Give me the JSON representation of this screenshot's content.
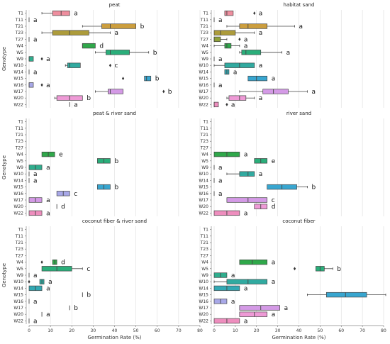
{
  "chart_data": [
    {
      "type": "boxplot",
      "title": "peat",
      "ylabel": "Genotype",
      "xlabel": "",
      "xlim": [
        0,
        80
      ],
      "x_ticks": [],
      "grid": true,
      "categories": [
        "T1",
        "T11",
        "T21",
        "T23",
        "T27",
        "W4",
        "W5",
        "W9",
        "W10",
        "W14",
        "W15",
        "W16",
        "W17",
        "W20",
        "W22"
      ],
      "boxes": [
        {
          "genotype": "T1",
          "min": 6,
          "q1": 11,
          "median": 15,
          "q3": 19,
          "max": 19,
          "outliers": [],
          "letter": "a",
          "color": "#ee8e9e"
        },
        {
          "genotype": "T11",
          "min": 0,
          "q1": 0,
          "median": 0,
          "q3": 0,
          "max": 0,
          "outliers": [],
          "letter": "a",
          "color": "#ee8e9e"
        },
        {
          "genotype": "T21",
          "min": 25,
          "q1": 34,
          "median": 38,
          "q3": 50,
          "max": 50,
          "outliers": [],
          "letter": "b",
          "color": "#cc9e3e"
        },
        {
          "genotype": "T23",
          "min": 6,
          "q1": 11,
          "median": 19,
          "q3": 28,
          "max": 38,
          "outliers": [],
          "letter": "a",
          "color": "#ad9c3b"
        },
        {
          "genotype": "T27",
          "min": 0,
          "q1": 0,
          "median": 0,
          "q3": 0,
          "max": 0,
          "outliers": [],
          "letter": "a",
          "color": "#8fa13a"
        },
        {
          "genotype": "W4",
          "min": 25,
          "q1": 25,
          "median": 25,
          "q3": 31,
          "max": 31,
          "outliers": [],
          "letter": "d",
          "color": "#2fa84a"
        },
        {
          "genotype": "W5",
          "min": 31,
          "q1": 36,
          "median": 38,
          "q3": 47,
          "max": 56,
          "outliers": [],
          "letter": "b",
          "color": "#2aae7a"
        },
        {
          "genotype": "W9",
          "min": 0,
          "q1": 0,
          "median": 0,
          "q3": 2,
          "max": 2,
          "outliers": [
            6
          ],
          "letter": "a",
          "color": "#30ae8e"
        },
        {
          "genotype": "W10",
          "min": 17,
          "q1": 18,
          "median": 19,
          "q3": 24,
          "max": 24,
          "outliers": [
            38
          ],
          "letter": "c",
          "color": "#31aaa0"
        },
        {
          "genotype": "W14",
          "min": 0,
          "q1": 0,
          "median": 0,
          "q3": 0,
          "max": 0,
          "outliers": [],
          "letter": "a",
          "color": "#33a9b4"
        },
        {
          "genotype": "W15",
          "min": 54,
          "q1": 54,
          "median": 55,
          "q3": 57,
          "max": 57,
          "outliers": [
            44
          ],
          "letter": "b",
          "color": "#38a6d0"
        },
        {
          "genotype": "W16",
          "min": 0,
          "q1": 0,
          "median": 0,
          "q3": 2,
          "max": 2,
          "outliers": [
            6
          ],
          "letter": "a",
          "color": "#a8a8e8"
        },
        {
          "genotype": "W17",
          "min": 31,
          "q1": 37,
          "median": 38,
          "q3": 44,
          "max": 44,
          "outliers": [
            63
          ],
          "letter": "b",
          "color": "#d49ae6"
        },
        {
          "genotype": "W20",
          "min": 12,
          "q1": 13,
          "median": 19,
          "q3": 25,
          "max": 25,
          "outliers": [],
          "letter": "b",
          "color": "#ee9ad6"
        },
        {
          "genotype": "W22",
          "min": 19,
          "q1": 19,
          "median": 19,
          "q3": 19,
          "max": 19,
          "outliers": [],
          "letter": "a",
          "color": "#ee8ebe"
        }
      ]
    },
    {
      "type": "boxplot",
      "title": "habitat sand",
      "ylabel": "",
      "xlabel": "",
      "xlim": [
        0,
        80
      ],
      "x_ticks": [],
      "grid": true,
      "categories": [
        "T1",
        "T11",
        "T21",
        "T23",
        "T27",
        "W4",
        "W5",
        "W9",
        "W10",
        "W14",
        "W15",
        "W16",
        "W17",
        "W20",
        "W22"
      ],
      "boxes": [
        {
          "genotype": "T1",
          "min": 5,
          "q1": 5,
          "median": 6,
          "q3": 9,
          "max": 9,
          "outliers": [
            19
          ],
          "letter": "a",
          "color": "#ee8e9e"
        },
        {
          "genotype": "T11",
          "min": 0,
          "q1": 0,
          "median": 0,
          "q3": 0,
          "max": 0,
          "outliers": [],
          "letter": "a",
          "color": "#ee8e9e"
        },
        {
          "genotype": "T21",
          "min": 6,
          "q1": 12,
          "median": 16,
          "q3": 25,
          "max": 38,
          "outliers": [],
          "letter": "a",
          "color": "#cc9e3e"
        },
        {
          "genotype": "T23",
          "min": 0,
          "q1": 0,
          "median": 3,
          "q3": 10,
          "max": 19,
          "outliers": [],
          "letter": "a",
          "color": "#ad9c3b"
        },
        {
          "genotype": "T27",
          "min": 0,
          "q1": 0,
          "median": 0,
          "q3": 3,
          "max": 6,
          "outliers": [
            12
          ],
          "letter": "a",
          "color": "#8fa13a"
        },
        {
          "genotype": "W4",
          "min": 0,
          "q1": 5,
          "median": 6,
          "q3": 8,
          "max": 12,
          "outliers": [],
          "letter": "a",
          "color": "#2fa84a"
        },
        {
          "genotype": "W5",
          "min": 12,
          "q1": 13,
          "median": 15,
          "q3": 22,
          "max": 32,
          "outliers": [],
          "letter": "a",
          "color": "#2aae7a"
        },
        {
          "genotype": "W9",
          "min": 0,
          "q1": 0,
          "median": 0,
          "q3": 0,
          "max": 0,
          "outliers": [],
          "letter": "a",
          "color": "#30ae8e"
        },
        {
          "genotype": "W10",
          "min": 0,
          "q1": 5,
          "median": 12,
          "q3": 19,
          "max": 19,
          "outliers": [],
          "letter": "a",
          "color": "#31aaa0"
        },
        {
          "genotype": "W14",
          "min": 5,
          "q1": 5,
          "median": 6,
          "q3": 7,
          "max": 7,
          "outliers": [],
          "letter": "a",
          "color": "#33a9b4"
        },
        {
          "genotype": "W15",
          "min": 16,
          "q1": 16,
          "median": 20,
          "q3": 25,
          "max": 25,
          "outliers": [],
          "letter": "a",
          "color": "#38a6d0"
        },
        {
          "genotype": "W16",
          "min": 0,
          "q1": 0,
          "median": 0,
          "q3": 0,
          "max": 0,
          "outliers": [],
          "letter": "a",
          "color": "#a8a8e8"
        },
        {
          "genotype": "W17",
          "min": 12,
          "q1": 23,
          "median": 28,
          "q3": 35,
          "max": 44,
          "outliers": [],
          "letter": "a",
          "color": "#d49ae6"
        },
        {
          "genotype": "W20",
          "min": 6,
          "q1": 7,
          "median": 12,
          "q3": 15,
          "max": 19,
          "outliers": [],
          "letter": "a",
          "color": "#ee9ad6"
        },
        {
          "genotype": "W22",
          "min": 0,
          "q1": 0,
          "median": 0,
          "q3": 2,
          "max": 2,
          "outliers": [
            6
          ],
          "letter": "a",
          "color": "#ee8ebe"
        }
      ]
    },
    {
      "type": "boxplot",
      "title": "peat & river sand",
      "ylabel": "Genotype",
      "xlabel": "",
      "xlim": [
        0,
        80
      ],
      "x_ticks": [],
      "grid": true,
      "categories": [
        "T1",
        "T11",
        "T21",
        "T23",
        "T27",
        "W4",
        "W5",
        "W9",
        "W10",
        "W14",
        "W15",
        "W16",
        "W17",
        "W20",
        "W22"
      ],
      "boxes": [
        {
          "genotype": "W4",
          "min": 6,
          "q1": 6,
          "median": 9,
          "q3": 12,
          "max": 12,
          "outliers": [],
          "letter": "e",
          "color": "#2fa84a"
        },
        {
          "genotype": "W5",
          "min": 32,
          "q1": 32,
          "median": 35,
          "q3": 38,
          "max": 38,
          "outliers": [],
          "letter": "b",
          "color": "#2aae7a"
        },
        {
          "genotype": "W9",
          "min": 0,
          "q1": 0,
          "median": 3,
          "q3": 6,
          "max": 6,
          "outliers": [],
          "letter": "a",
          "color": "#30ae8e"
        },
        {
          "genotype": "W10",
          "min": 0,
          "q1": 0,
          "median": 0,
          "q3": 0,
          "max": 0,
          "outliers": [],
          "letter": "a",
          "color": "#31aaa0"
        },
        {
          "genotype": "W14",
          "min": 0,
          "q1": 0,
          "median": 0,
          "q3": 0,
          "max": 0,
          "outliers": [],
          "letter": "a",
          "color": "#33a9b4"
        },
        {
          "genotype": "W15",
          "min": 32,
          "q1": 32,
          "median": 35,
          "q3": 38,
          "max": 38,
          "outliers": [],
          "letter": "b",
          "color": "#38a6d0"
        },
        {
          "genotype": "W16",
          "min": 13,
          "q1": 13,
          "median": 16,
          "q3": 19,
          "max": 19,
          "outliers": [],
          "letter": "c",
          "color": "#a8a8e8"
        },
        {
          "genotype": "W17",
          "min": 0,
          "q1": 0,
          "median": 3,
          "q3": 6,
          "max": 6,
          "outliers": [],
          "letter": "a",
          "color": "#d49ae6"
        },
        {
          "genotype": "W20",
          "min": 13,
          "q1": 13,
          "median": 13,
          "q3": 13,
          "max": 13,
          "outliers": [],
          "letter": "d",
          "color": "#ee9ad6"
        },
        {
          "genotype": "W22",
          "min": 0,
          "q1": 0,
          "median": 3,
          "q3": 6,
          "max": 6,
          "outliers": [],
          "letter": "a",
          "color": "#ee8ebe"
        }
      ]
    },
    {
      "type": "boxplot",
      "title": "river sand",
      "ylabel": "",
      "xlabel": "",
      "xlim": [
        0,
        80
      ],
      "x_ticks": [],
      "grid": true,
      "categories": [
        "T1",
        "T11",
        "T21",
        "T23",
        "T27",
        "W4",
        "W5",
        "W9",
        "W10",
        "W14",
        "W15",
        "W16",
        "W17",
        "W20",
        "W22"
      ],
      "boxes": [
        {
          "genotype": "W4",
          "min": 0,
          "q1": 0,
          "median": 6,
          "q3": 12,
          "max": 12,
          "outliers": [],
          "letter": "a",
          "color": "#2fa84a"
        },
        {
          "genotype": "W5",
          "min": 19,
          "q1": 19,
          "median": 22,
          "q3": 25,
          "max": 25,
          "outliers": [],
          "letter": "e",
          "color": "#2aae7a"
        },
        {
          "genotype": "W9",
          "min": 0,
          "q1": 0,
          "median": 0,
          "q3": 0,
          "max": 0,
          "outliers": [],
          "letter": "a",
          "color": "#30ae8e"
        },
        {
          "genotype": "W10",
          "min": 6,
          "q1": 12,
          "median": 16,
          "q3": 19,
          "max": 19,
          "outliers": [],
          "letter": "a",
          "color": "#31aaa0"
        },
        {
          "genotype": "W14",
          "min": 0,
          "q1": 0,
          "median": 0,
          "q3": 0,
          "max": 0,
          "outliers": [],
          "letter": "a",
          "color": "#33a9b4"
        },
        {
          "genotype": "W15",
          "min": 25,
          "q1": 25,
          "median": 32,
          "q3": 39,
          "max": 44,
          "outliers": [],
          "letter": "b",
          "color": "#38a6d0"
        },
        {
          "genotype": "W16",
          "min": 0,
          "q1": 0,
          "median": 0,
          "q3": 0,
          "max": 0,
          "outliers": [],
          "letter": "a",
          "color": "#a8a8e8"
        },
        {
          "genotype": "W17",
          "min": 6,
          "q1": 6,
          "median": 16,
          "q3": 25,
          "max": 25,
          "outliers": [],
          "letter": "c",
          "color": "#d49ae6"
        },
        {
          "genotype": "W20",
          "min": 19,
          "q1": 19,
          "median": 22,
          "q3": 25,
          "max": 25,
          "outliers": [],
          "letter": "d",
          "color": "#ee9ad6"
        },
        {
          "genotype": "W22",
          "min": 0,
          "q1": 0,
          "median": 6,
          "q3": 12,
          "max": 12,
          "outliers": [],
          "letter": "a",
          "color": "#ee8ebe"
        }
      ]
    },
    {
      "type": "boxplot",
      "title": "coconut fiber & river sand",
      "ylabel": "Genotype",
      "xlabel": "Germination Rate (%)",
      "xlim": [
        0,
        80
      ],
      "x_ticks": [
        0,
        10,
        20,
        30,
        40,
        50,
        60,
        70,
        80
      ],
      "grid": true,
      "categories": [
        "T1",
        "T11",
        "T21",
        "T23",
        "T27",
        "W4",
        "W5",
        "W9",
        "W10",
        "W14",
        "W15",
        "W16",
        "W17",
        "W20",
        "W22"
      ],
      "boxes": [
        {
          "genotype": "W4",
          "min": 11,
          "q1": 11,
          "median": 12,
          "q3": 13,
          "max": 13,
          "outliers": [
            6
          ],
          "letter": "d",
          "color": "#2fa84a"
        },
        {
          "genotype": "W5",
          "min": 6,
          "q1": 6,
          "median": 13,
          "q3": 20,
          "max": 25,
          "outliers": [],
          "letter": "c",
          "color": "#2aae7a"
        },
        {
          "genotype": "W9",
          "min": 0,
          "q1": 0,
          "median": 0,
          "q3": 0,
          "max": 0,
          "outliers": [],
          "letter": "a",
          "color": "#30ae8e"
        },
        {
          "genotype": "W10",
          "min": 5,
          "q1": 5,
          "median": 6,
          "q3": 7,
          "max": 7,
          "outliers": [
            0
          ],
          "letter": "a",
          "color": "#31aaa0"
        },
        {
          "genotype": "W14",
          "min": 0,
          "q1": 0,
          "median": 3,
          "q3": 6,
          "max": 6,
          "outliers": [],
          "letter": "a",
          "color": "#33a9b4"
        },
        {
          "genotype": "W15",
          "min": 25,
          "q1": 25,
          "median": 25,
          "q3": 25,
          "max": 25,
          "outliers": [],
          "letter": "b",
          "color": "#38a6d0"
        },
        {
          "genotype": "W16",
          "min": 0,
          "q1": 0,
          "median": 0,
          "q3": 0,
          "max": 0,
          "outliers": [],
          "letter": "a",
          "color": "#a8a8e8"
        },
        {
          "genotype": "W17",
          "min": 19,
          "q1": 19,
          "median": 19,
          "q3": 19,
          "max": 19,
          "outliers": [],
          "letter": "b",
          "color": "#d49ae6"
        },
        {
          "genotype": "W20",
          "min": 6,
          "q1": 6,
          "median": 6,
          "q3": 6,
          "max": 6,
          "outliers": [],
          "letter": "a",
          "color": "#ee9ad6"
        },
        {
          "genotype": "W22",
          "min": 0,
          "q1": 0,
          "median": 0,
          "q3": 0,
          "max": 0,
          "outliers": [],
          "letter": "a",
          "color": "#ee8ebe"
        }
      ]
    },
    {
      "type": "boxplot",
      "title": "coconut fiber",
      "ylabel": "",
      "xlabel": "Germination Rate (%)",
      "xlim": [
        0,
        80
      ],
      "x_ticks": [
        0,
        10,
        20,
        30,
        40,
        50,
        60,
        70,
        80
      ],
      "grid": true,
      "categories": [
        "T1",
        "T11",
        "T21",
        "T23",
        "T27",
        "W4",
        "W5",
        "W9",
        "W10",
        "W14",
        "W15",
        "W16",
        "W17",
        "W20",
        "W22"
      ],
      "boxes": [
        {
          "genotype": "W4",
          "min": 12,
          "q1": 12,
          "median": 18,
          "q3": 25,
          "max": 25,
          "outliers": [],
          "letter": "a",
          "color": "#2fa84a"
        },
        {
          "genotype": "W5",
          "min": 48,
          "q1": 48,
          "median": 50,
          "q3": 52,
          "max": 56,
          "outliers": [
            38
          ],
          "letter": "b",
          "color": "#2aae7a"
        },
        {
          "genotype": "W9",
          "min": 0,
          "q1": 0,
          "median": 3,
          "q3": 6,
          "max": 6,
          "outliers": [],
          "letter": "a",
          "color": "#30ae8e"
        },
        {
          "genotype": "W10",
          "min": 0,
          "q1": 6,
          "median": 16,
          "q3": 25,
          "max": 25,
          "outliers": [],
          "letter": "a",
          "color": "#31aaa0"
        },
        {
          "genotype": "W14",
          "min": 0,
          "q1": 0,
          "median": 6,
          "q3": 12,
          "max": 12,
          "outliers": [],
          "letter": "a",
          "color": "#33a9b4"
        },
        {
          "genotype": "W15",
          "min": 44,
          "q1": 53,
          "median": 62,
          "q3": 72,
          "max": 81,
          "outliers": [],
          "letter": "b",
          "color": "#38a6d0"
        },
        {
          "genotype": "W16",
          "min": 0,
          "q1": 0,
          "median": 3,
          "q3": 6,
          "max": 6,
          "outliers": [],
          "letter": "a",
          "color": "#a8a8e8"
        },
        {
          "genotype": "W17",
          "min": 12,
          "q1": 12,
          "median": 22,
          "q3": 31,
          "max": 31,
          "outliers": [],
          "letter": "a",
          "color": "#d49ae6"
        },
        {
          "genotype": "W20",
          "min": 12,
          "q1": 12,
          "median": 19,
          "q3": 25,
          "max": 25,
          "outliers": [],
          "letter": "a",
          "color": "#ee9ad6"
        },
        {
          "genotype": "W22",
          "min": 0,
          "q1": 0,
          "median": 6,
          "q3": 12,
          "max": 12,
          "outliers": [],
          "letter": "a",
          "color": "#ee8ebe"
        }
      ]
    }
  ]
}
